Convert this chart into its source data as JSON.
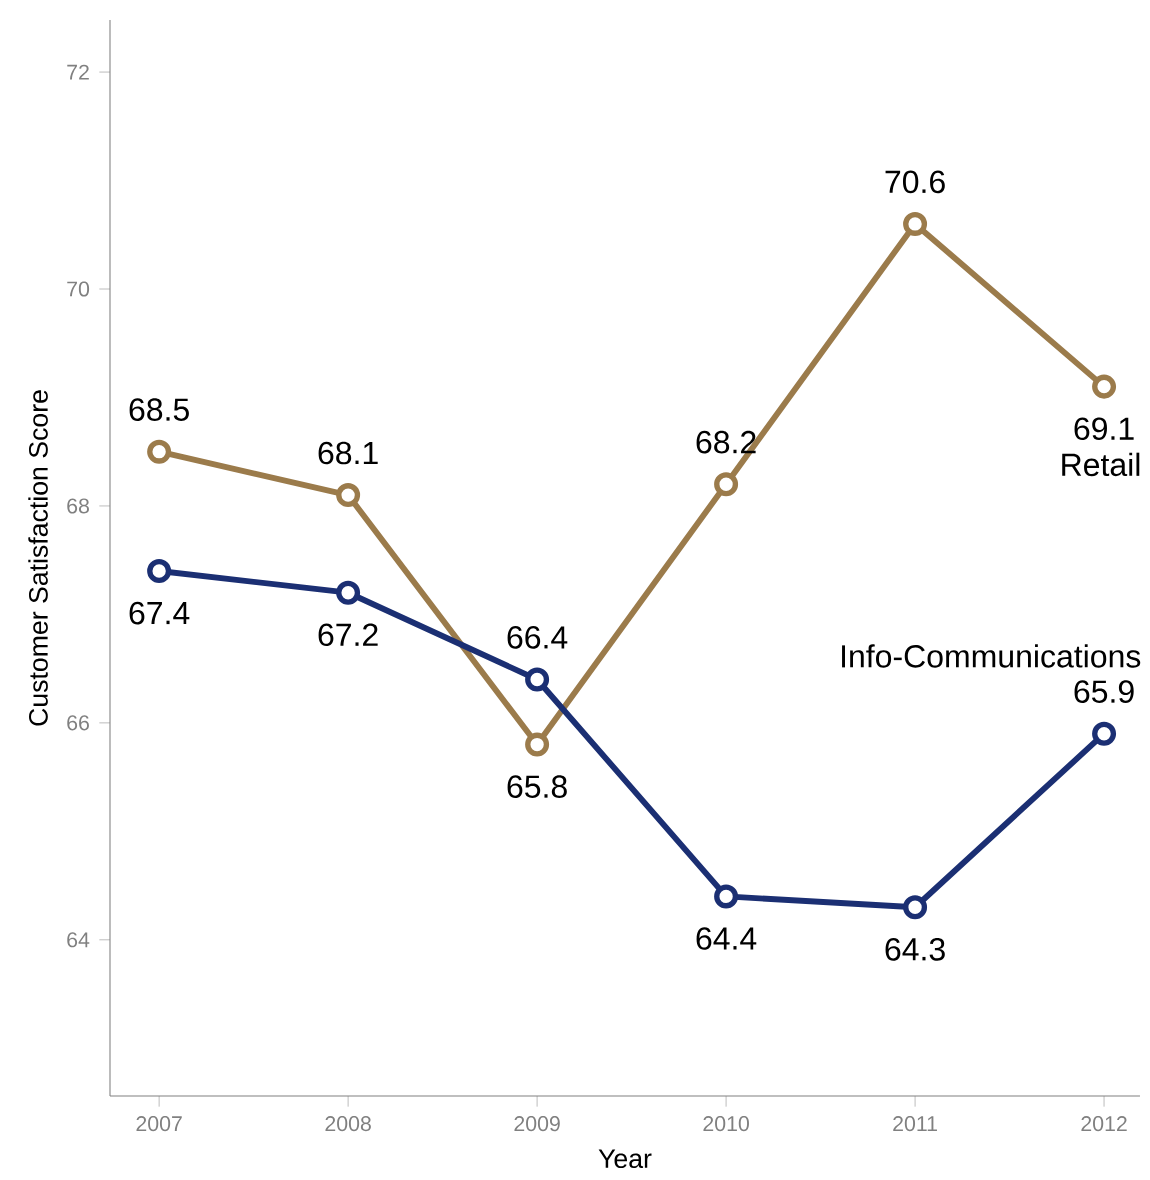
{
  "chart_data": {
    "type": "line",
    "xlabel": "Year",
    "ylabel": "Customer Satisfaction Score",
    "x": [
      2007,
      2008,
      2009,
      2010,
      2011,
      2012
    ],
    "series": [
      {
        "name": "Retail",
        "color": "#9b7b4b",
        "values": [
          68.5,
          68.1,
          65.8,
          68.2,
          70.6,
          69.1
        ]
      },
      {
        "name": "Info-Communications",
        "color": "#1b2f73",
        "values": [
          67.4,
          67.2,
          66.4,
          64.4,
          64.3,
          65.9
        ]
      }
    ],
    "xlim": [
      2006.74,
      2012.19
    ],
    "ylim": [
      62.56,
      72.48
    ],
    "xticks": [
      2007,
      2008,
      2009,
      2010,
      2011,
      2012
    ],
    "yticks": [
      64,
      66,
      68,
      70,
      72
    ],
    "data_labels": true,
    "legend": false,
    "grid": false,
    "marker": "circle",
    "line_style": "solid"
  }
}
